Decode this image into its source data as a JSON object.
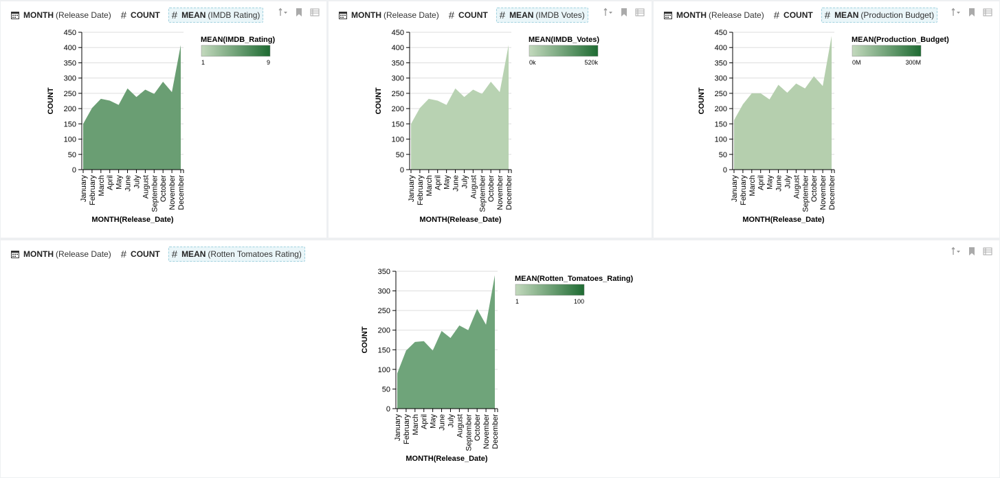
{
  "app": {
    "fn_labels": {
      "time": "MONTH",
      "count": "COUNT",
      "mean": "MEAN"
    }
  },
  "cards": [
    {
      "id": "imdb-rating",
      "header": {
        "time_field": "(Release Date)",
        "color_field": "(IMDB Rating)"
      },
      "legend": {
        "title": "MEAN(IMDB_Rating)",
        "min_label": "1",
        "max_label": "9"
      },
      "area_color": "#6a9e73",
      "chart_data": {
        "type": "area",
        "categories": [
          "January",
          "February",
          "March",
          "April",
          "May",
          "June",
          "July",
          "August",
          "September",
          "October",
          "November",
          "December"
        ],
        "values": [
          150,
          202,
          232,
          226,
          212,
          266,
          238,
          262,
          248,
          288,
          254,
          408
        ],
        "xlabel": "MONTH(Release_Date)",
        "ylabel": "COUNT",
        "ylim": [
          0,
          450
        ],
        "yticks": [
          0,
          50,
          100,
          150,
          200,
          250,
          300,
          350,
          400,
          450
        ],
        "grid": true,
        "legend_position": "right"
      }
    },
    {
      "id": "imdb-votes",
      "header": {
        "time_field": "(Release Date)",
        "color_field": "(IMDB Votes)"
      },
      "legend": {
        "title": "MEAN(IMDB_Votes)",
        "min_label": "0k",
        "max_label": "520k"
      },
      "area_color": "#b8d2b2",
      "chart_data": {
        "type": "area",
        "categories": [
          "January",
          "February",
          "March",
          "April",
          "May",
          "June",
          "July",
          "August",
          "September",
          "October",
          "November",
          "December"
        ],
        "values": [
          150,
          202,
          232,
          226,
          212,
          266,
          238,
          262,
          248,
          288,
          254,
          408
        ],
        "xlabel": "MONTH(Release_Date)",
        "ylabel": "COUNT",
        "ylim": [
          0,
          450
        ],
        "yticks": [
          0,
          50,
          100,
          150,
          200,
          250,
          300,
          350,
          400,
          450
        ],
        "grid": true,
        "legend_position": "right"
      }
    },
    {
      "id": "production-budget",
      "header": {
        "time_field": "(Release Date)",
        "color_field": "(Production Budget)"
      },
      "legend": {
        "title": "MEAN(Production_Budget)",
        "min_label": "0M",
        "max_label": "300M"
      },
      "area_color": "#b5cfae",
      "chart_data": {
        "type": "area",
        "categories": [
          "January",
          "February",
          "March",
          "April",
          "May",
          "June",
          "July",
          "August",
          "September",
          "October",
          "November",
          "December"
        ],
        "values": [
          162,
          214,
          250,
          250,
          230,
          278,
          252,
          282,
          266,
          306,
          274,
          438
        ],
        "xlabel": "MONTH(Release_Date)",
        "ylabel": "COUNT",
        "ylim": [
          0,
          450
        ],
        "yticks": [
          0,
          50,
          100,
          150,
          200,
          250,
          300,
          350,
          400,
          450
        ],
        "grid": true,
        "legend_position": "right"
      }
    },
    {
      "id": "rotten-tomatoes",
      "header": {
        "time_field": "(Release Date)",
        "color_field": "(Rotten Tomatoes Rating)"
      },
      "legend": {
        "title": "MEAN(Rotten_Tomatoes_Rating)",
        "min_label": "1",
        "max_label": "100"
      },
      "area_color": "#6fa47a",
      "chart_data": {
        "type": "area",
        "categories": [
          "January",
          "February",
          "March",
          "April",
          "May",
          "June",
          "July",
          "August",
          "September",
          "October",
          "November",
          "December"
        ],
        "values": [
          90,
          148,
          170,
          172,
          148,
          198,
          180,
          212,
          200,
          254,
          214,
          340
        ],
        "xlabel": "MONTH(Release_Date)",
        "ylabel": "COUNT",
        "ylim": [
          0,
          350
        ],
        "yticks": [
          0,
          50,
          100,
          150,
          200,
          250,
          300,
          350
        ],
        "grid": true,
        "legend_position": "right"
      }
    }
  ],
  "colors": {
    "legend_low": "#c3d9bd",
    "legend_high": "#1e6b32",
    "grid": "#dddddd",
    "axis": "#000000",
    "pill_bg": "#eaf6f9",
    "pill_border": "#9fd0de"
  }
}
